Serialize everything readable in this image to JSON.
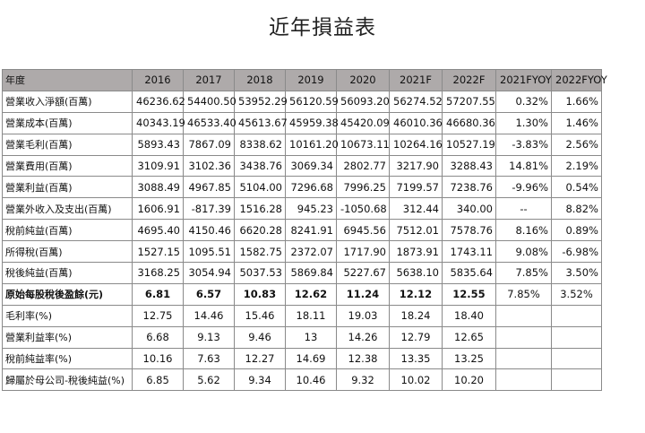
{
  "title": "近年損益表",
  "columns": [
    "年度",
    "2016",
    "2017",
    "2018",
    "2019",
    "2020",
    "2021F",
    "2022F",
    "2021FYOY",
    "2022FYOY"
  ],
  "rows": [
    {
      "label": "營業收入淨額(百萬)",
      "values": [
        "46236.62",
        "54400.50",
        "53952.29",
        "56120.59",
        "56093.20",
        "56274.52",
        "57207.55",
        "0.32%",
        "1.66%"
      ]
    },
    {
      "label": "營業成本(百萬)",
      "values": [
        "40343.19",
        "46533.40",
        "45613.67",
        "45959.38",
        "45420.09",
        "46010.36",
        "46680.36",
        "1.30%",
        "1.46%"
      ]
    },
    {
      "label": "營業毛利(百萬)",
      "values": [
        "5893.43",
        "7867.09",
        "8338.62",
        "10161.20",
        "10673.11",
        "10264.16",
        "10527.19",
        "-3.83%",
        "2.56%"
      ]
    },
    {
      "label": "營業費用(百萬)",
      "values": [
        "3109.91",
        "3102.36",
        "3438.76",
        "3069.34",
        "2802.77",
        "3217.90",
        "3288.43",
        "14.81%",
        "2.19%"
      ]
    },
    {
      "label": "營業利益(百萬)",
      "values": [
        "3088.49",
        "4967.85",
        "5104.00",
        "7296.68",
        "7996.25",
        "7199.57",
        "7238.76",
        "-9.96%",
        "0.54%"
      ]
    },
    {
      "label": "營業外收入及支出(百萬)",
      "values": [
        "1606.91",
        "-817.39",
        "1516.28",
        "945.23",
        "-1050.68",
        "312.44",
        "340.00",
        "--",
        "8.82%"
      ]
    },
    {
      "label": "稅前純益(百萬)",
      "values": [
        "4695.40",
        "4150.46",
        "6620.28",
        "8241.91",
        "6945.56",
        "7512.01",
        "7578.76",
        "8.16%",
        "0.89%"
      ]
    },
    {
      "label": "所得稅(百萬)",
      "values": [
        "1527.15",
        "1095.51",
        "1582.75",
        "2372.07",
        "1717.90",
        "1873.91",
        "1743.11",
        "9.08%",
        "-6.98%"
      ]
    },
    {
      "label": "稅後純益(百萬)",
      "values": [
        "3168.25",
        "3054.94",
        "5037.53",
        "5869.84",
        "5227.67",
        "5638.10",
        "5835.64",
        "7.85%",
        "3.50%"
      ]
    },
    {
      "label": "原始每股稅後盈餘(元)",
      "values": [
        "6.81",
        "6.57",
        "10.83",
        "12.62",
        "11.24",
        "12.12",
        "12.55",
        "7.85%",
        "3.52%"
      ]
    },
    {
      "label": "毛利率(%)",
      "values": [
        "12.75",
        "14.46",
        "15.46",
        "18.11",
        "19.03",
        "18.24",
        "18.40",
        "",
        ""
      ]
    },
    {
      "label": "營業利益率(%)",
      "values": [
        "6.68",
        "9.13",
        "9.46",
        "13",
        "14.26",
        "12.79",
        "12.65",
        "",
        ""
      ]
    },
    {
      "label": "稅前純益率(%)",
      "values": [
        "10.16",
        "7.63",
        "12.27",
        "14.69",
        "12.38",
        "13.35",
        "13.25",
        "",
        ""
      ]
    },
    {
      "label": "歸屬於母公司-稅後純益(%)",
      "values": [
        "6.85",
        "5.62",
        "9.34",
        "10.46",
        "9.32",
        "10.02",
        "10.20",
        "",
        ""
      ]
    }
  ]
}
